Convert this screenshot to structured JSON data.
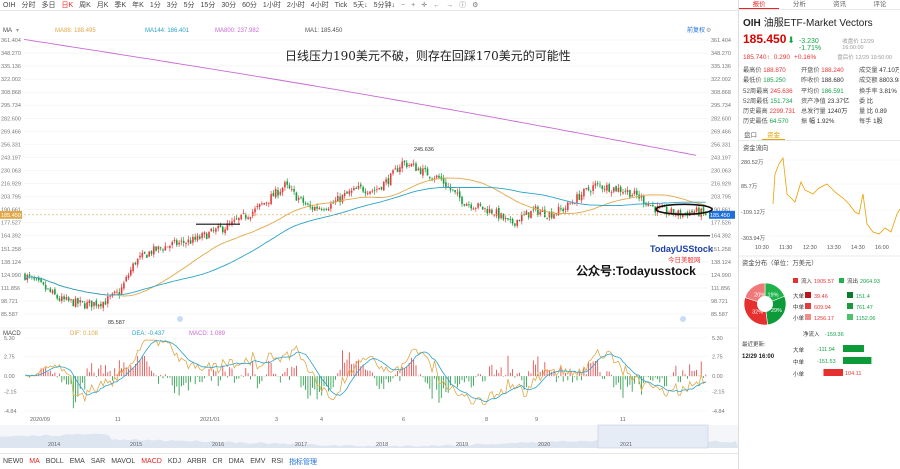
{
  "toolbar": {
    "symbol": "OIH",
    "items": [
      {
        "label": "分时",
        "active": false
      },
      {
        "label": "多日",
        "active": false
      },
      {
        "label": "日K",
        "active": true
      },
      {
        "label": "周K",
        "active": false
      },
      {
        "label": "月K",
        "active": false
      },
      {
        "label": "季K",
        "active": false
      },
      {
        "label": "年K",
        "active": false
      },
      {
        "label": "1分",
        "active": false
      },
      {
        "label": "3分",
        "active": false
      },
      {
        "label": "5分",
        "active": false
      },
      {
        "label": "15分",
        "active": false
      },
      {
        "label": "30分",
        "active": false
      },
      {
        "label": "60分",
        "active": false
      },
      {
        "label": "1小时",
        "active": false
      },
      {
        "label": "2小时",
        "active": false
      },
      {
        "label": "4小时",
        "active": false
      },
      {
        "label": "Tick",
        "active": false
      }
    ],
    "days_select": "5天↓",
    "minutes_select": "5分钟↓",
    "icons": [
      "minus-icon",
      "plus-icon",
      "crosshair-icon",
      "left-arrow-icon",
      "right-arrow-icon",
      "info-icon",
      "settings-icon"
    ]
  },
  "main": {
    "ma_label": "MA",
    "ma_items": [
      {
        "label": "MA88: 188.495",
        "color": "#e0a84a"
      },
      {
        "label": "MA144: 186.401",
        "color": "#2aa3c9"
      },
      {
        "label": "MA800: 237.982",
        "color": "#c96ad4"
      },
      {
        "label": "MA1: 185.450",
        "color": "#555555"
      }
    ],
    "adjust": "前复权",
    "annotation": "日线压力190美元不破，则存在回踩170美元的可能性",
    "watermark_brand": "TodayUSStock",
    "watermark_sub": "今日美股网",
    "wechat": "公众号:Todayusstock",
    "hi_label": "245.636",
    "lo_label": "85.587",
    "price_tag": "185.450",
    "hline_tag": "184.392",
    "y_left": [
      "361.404",
      "348.270",
      "335.136",
      "322.002",
      "308.868",
      "295.734",
      "282.600",
      "269.466",
      "256.331",
      "243.197",
      "230.063",
      "216.929",
      "203.795",
      "190.661",
      "177.527",
      "164.392",
      "151.258",
      "138.124",
      "124.990",
      "111.856",
      "98.721",
      "85.587"
    ],
    "y_right": [
      "361.404",
      "348.270",
      "335.136",
      "322.002",
      "308.868",
      "295.734",
      "282.600",
      "269.466",
      "256.331",
      "243.197",
      "230.063",
      "216.929",
      "203.795",
      "190.661",
      "177.526",
      "164.392",
      "151.258",
      "138.124",
      "124.990",
      "111.856",
      "98.721",
      "85.587"
    ]
  },
  "macd": {
    "title": "MACD",
    "dif": "DIF: 0.108",
    "dea": "DEA: -0.437",
    "macd": "MACD: 1.089",
    "dif_color": "#e0a84a",
    "dea_color": "#2aa3c9",
    "macd_color": "#c96ad4",
    "y_left": [
      "5.30",
      "2.75",
      "0.00",
      "-2.15",
      "-4.84"
    ],
    "y_right": [
      "5.30",
      "2.75",
      "0.00",
      "-2.15",
      "-4.84"
    ],
    "x_labels": [
      "2020/09",
      "11",
      "2021/01",
      "3",
      "4",
      "6",
      "8",
      "9",
      "11"
    ]
  },
  "navigator": {
    "years": [
      "2014",
      "2015",
      "2016",
      "2017",
      "2018",
      "2019",
      "2020",
      "2021"
    ]
  },
  "indicators": {
    "items": [
      {
        "label": "NEW0",
        "active": false
      },
      {
        "label": "MA",
        "active": true
      },
      {
        "label": "BOLL",
        "active": false
      },
      {
        "label": "EMA",
        "active": false
      },
      {
        "label": "SAR",
        "active": false
      },
      {
        "label": "MAVOL",
        "active": false
      },
      {
        "label": "MACD",
        "active": true
      },
      {
        "label": "KDJ",
        "active": false
      },
      {
        "label": "ARBR",
        "active": false
      },
      {
        "label": "CR",
        "active": false
      },
      {
        "label": "DMA",
        "active": false
      },
      {
        "label": "EMV",
        "active": false
      },
      {
        "label": "RSI",
        "active": false
      }
    ],
    "manage": "指标管理"
  },
  "right": {
    "tabs": [
      {
        "label": "报价",
        "active": true
      },
      {
        "label": "分析",
        "active": false
      },
      {
        "label": "资讯",
        "active": false
      },
      {
        "label": "评论",
        "active": false
      }
    ],
    "symbol": "OIH",
    "name": "油服ETF-Market Vectors",
    "price": "185.450",
    "arrow": "⬇",
    "change": "-3.230",
    "pct": "-1.71%",
    "time1": "收盘价 12/29 16:00:00",
    "pre_price": "185.740↑",
    "pre_change": "0.290",
    "pre_pct": "+0.16%",
    "time2": "盘后价 12/29 19:50:00",
    "stats": [
      {
        "label": "最高价",
        "value": "188.870",
        "cls": "r"
      },
      {
        "label": "开盘价",
        "value": "188.240",
        "cls": "r"
      },
      {
        "label": "成交量",
        "value": "47.10万",
        "cls": "k"
      },
      {
        "label": "最低价",
        "value": "185.250",
        "cls": "g"
      },
      {
        "label": "昨收价",
        "value": "188.680",
        "cls": "k"
      },
      {
        "label": "成交额",
        "value": "8803.98万",
        "cls": "k"
      },
      {
        "label": "52周最高",
        "value": "245.636",
        "cls": "r"
      },
      {
        "label": "平均价",
        "value": "186.591",
        "cls": "g"
      },
      {
        "label": "换手率",
        "value": "3.81%",
        "cls": "k"
      },
      {
        "label": "52周最低",
        "value": "151.734",
        "cls": "g"
      },
      {
        "label": "资产净值",
        "value": "23.37亿",
        "cls": "k"
      },
      {
        "label": "委",
        "value": "比",
        "cls": "k"
      },
      {
        "label": "历史最高",
        "value": "2299.731",
        "cls": "r"
      },
      {
        "label": "总发行量",
        "value": "1240万",
        "cls": "k"
      },
      {
        "label": "量",
        "value": "比 0.89",
        "cls": "k"
      },
      {
        "label": "历史最低",
        "value": "64.570",
        "cls": "g"
      },
      {
        "label": "振",
        "value": "幅 1.92%",
        "cls": "k"
      },
      {
        "label": "每手",
        "value": "1股",
        "cls": "k"
      }
    ],
    "subtabs": [
      {
        "label": "盘口",
        "active": false
      },
      {
        "label": "资金",
        "active": true
      }
    ],
    "flow_title": "资金流向",
    "flow_y": [
      "280.52万",
      "85.7万",
      "-109.12万",
      "-303.94万"
    ],
    "flow_x": [
      "10:30",
      "11:30",
      "12:30",
      "13:30",
      "14:30",
      "16:00"
    ],
    "dist_title": "资金分布（单位：万美元）",
    "pie": [
      {
        "label": "19%",
        "value": 19,
        "color": "#1fb24a"
      },
      {
        "label": "29%",
        "value": 29,
        "color": "#0d9b3a"
      },
      {
        "label": "32%",
        "value": 32,
        "color": "#e63030"
      },
      {
        "label": "20%",
        "value": 20,
        "color": "#f07a7a"
      }
    ],
    "flow_in_label": "流入",
    "flow_in": "1905.57",
    "flow_out_label": "流出",
    "flow_out": "2064.93",
    "dist_rows": [
      {
        "label": "大单",
        "in": "39.46",
        "out": "151.4"
      },
      {
        "label": "中单",
        "in": "609.94",
        "out": "761.47"
      },
      {
        "label": "小单",
        "in": "1256.17",
        "out": "1152.06"
      }
    ],
    "net_label": "净流入",
    "net_value": "-159.36",
    "update_label": "最近更新:",
    "update_time": "12/29 16:00",
    "net_rows": [
      {
        "label": "大单",
        "value": "-111.94"
      },
      {
        "label": "中单",
        "value": "-151.53"
      },
      {
        "label": "小单",
        "value": "104.11"
      }
    ]
  }
}
